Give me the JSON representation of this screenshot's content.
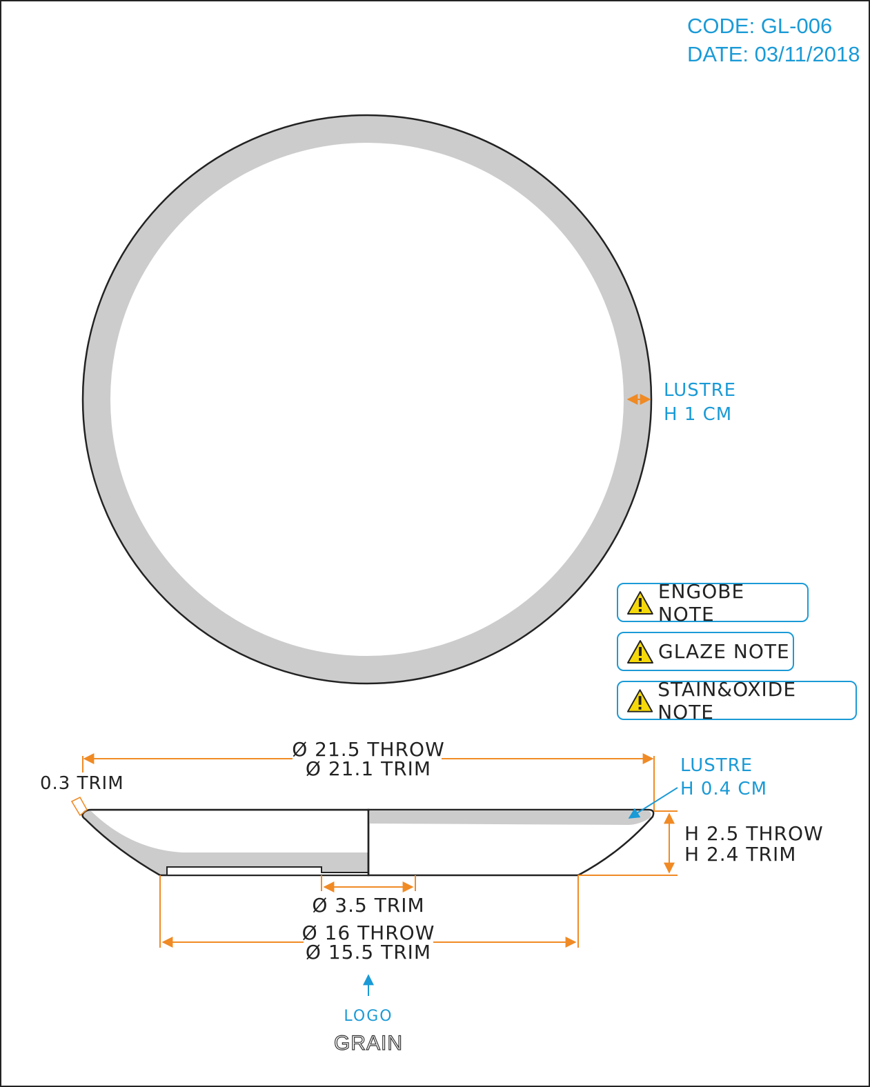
{
  "header": {
    "code": "CODE: GL-006",
    "date": "DATE: 03/11/2018"
  },
  "top_view": {
    "lustre_label": "LUSTRE",
    "lustre_height": "H 1 CM"
  },
  "notes": [
    {
      "label": "ENGOBE NOTE",
      "icon": "warning-icon"
    },
    {
      "label": "GLAZE NOTE",
      "icon": "warning-icon"
    },
    {
      "label": "STAIN&OXIDE NOTE",
      "icon": "warning-icon"
    }
  ],
  "side_view": {
    "diameter_throw": "Ø 21.5 THROW",
    "diameter_trim": "Ø 21.1 TRIM",
    "trim_thickness": "0.3 TRIM",
    "lustre_label": "LUSTRE",
    "lustre_height": "H 0.4 CM",
    "height_throw": "H 2.5 THROW",
    "height_trim": "H 2.4 TRIM",
    "foot_inner": "Ø 3.5 TRIM",
    "foot_throw": "Ø 16 THROW",
    "foot_trim": "Ø 15.5 TRIM"
  },
  "logo": {
    "label": "LOGO",
    "mark": "GRAIN"
  },
  "colors": {
    "accent": "#1a9ad6",
    "dimension": "#f08a24",
    "lustre_band": "#cccccc",
    "outline": "#222222"
  }
}
